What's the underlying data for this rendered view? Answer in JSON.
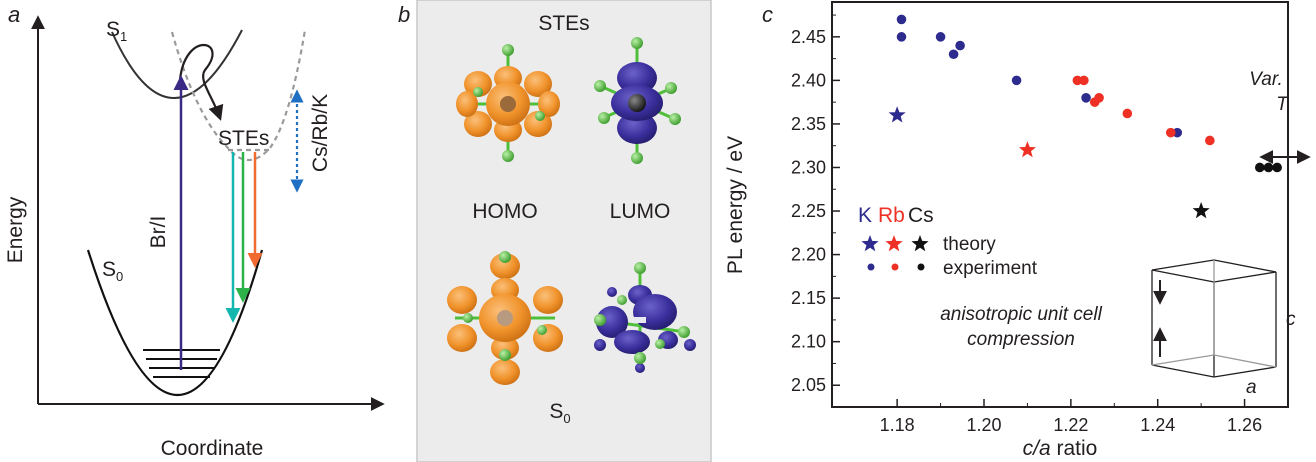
{
  "panel_a": {
    "label": "a",
    "y_axis_label": "Energy",
    "x_axis_label": "Coordinate",
    "s1_label": "S",
    "s1_sub": "1",
    "s0_label": "S",
    "s0_sub": "0",
    "stes_label": "STEs",
    "bri_label": "Br/I",
    "csrbk_label": "Cs/Rb/K",
    "colors": {
      "purple": "#3a2a86",
      "teal": "#13b7b0",
      "green": "#2db24a",
      "orange": "#f26a30",
      "blue": "#1f6fc2"
    }
  },
  "panel_b": {
    "label": "b",
    "title": "STEs",
    "homo_label": "HOMO",
    "lumo_label": "LUMO",
    "s0_label": "S",
    "s0_sub": "0",
    "colors": {
      "homo_lobe": "#f0922a",
      "lumo_lobe": "#3a2f9c",
      "halide": "#4fbf3a",
      "background": "#eeeeee"
    }
  },
  "panel_c": {
    "label": "c",
    "legend_K": "K",
    "legend_Rb": "Rb",
    "legend_Cs": "Cs",
    "legend_theory": "theory",
    "legend_experiment": "experiment",
    "annotation_line1": "anisotropic unit cell",
    "annotation_line2": "compression",
    "var_t_line1": "Var.",
    "var_t_line2": "T",
    "cube_label_c": "c",
    "cube_label_a": "a",
    "x_label_italic": "c/a",
    "x_label_rest": " ratio"
  },
  "chart_data": {
    "type": "scatter",
    "xlabel": "c/a ratio",
    "ylabel": "PL energy / eV",
    "xlim": [
      1.165,
      1.27
    ],
    "ylim": [
      2.025,
      2.49
    ],
    "x_ticks": [
      "1.18",
      "1.20",
      "1.22",
      "1.24",
      "1.26"
    ],
    "y_ticks": [
      "2.05",
      "2.10",
      "2.15",
      "2.20",
      "2.25",
      "2.30",
      "2.35",
      "2.40",
      "2.45"
    ],
    "colors": {
      "K": "#2e2b8f",
      "Rb": "#ee3124",
      "Cs": "#111111"
    },
    "series": [
      {
        "name": "K",
        "kind": "experiment",
        "points": [
          [
            1.181,
            2.47
          ],
          [
            1.181,
            2.45
          ],
          [
            1.19,
            2.45
          ],
          [
            1.193,
            2.43
          ],
          [
            1.1945,
            2.44
          ],
          [
            1.2075,
            2.4
          ],
          [
            1.2235,
            2.38
          ],
          [
            1.2445,
            2.34
          ]
        ]
      },
      {
        "name": "Rb",
        "kind": "experiment",
        "points": [
          [
            1.2215,
            2.4
          ],
          [
            1.223,
            2.4
          ],
          [
            1.2255,
            2.375
          ],
          [
            1.2265,
            2.38
          ],
          [
            1.233,
            2.362
          ],
          [
            1.243,
            2.34
          ],
          [
            1.252,
            2.331
          ]
        ]
      },
      {
        "name": "Cs",
        "kind": "experiment",
        "points": [
          [
            1.2635,
            2.3
          ],
          [
            1.2655,
            2.3
          ],
          [
            1.2675,
            2.3
          ]
        ]
      },
      {
        "name": "K",
        "kind": "theory",
        "points": [
          [
            1.18,
            2.36
          ]
        ]
      },
      {
        "name": "Rb",
        "kind": "theory",
        "points": [
          [
            1.21,
            2.32
          ]
        ]
      },
      {
        "name": "Cs",
        "kind": "theory",
        "points": [
          [
            1.25,
            2.25
          ]
        ]
      }
    ]
  }
}
